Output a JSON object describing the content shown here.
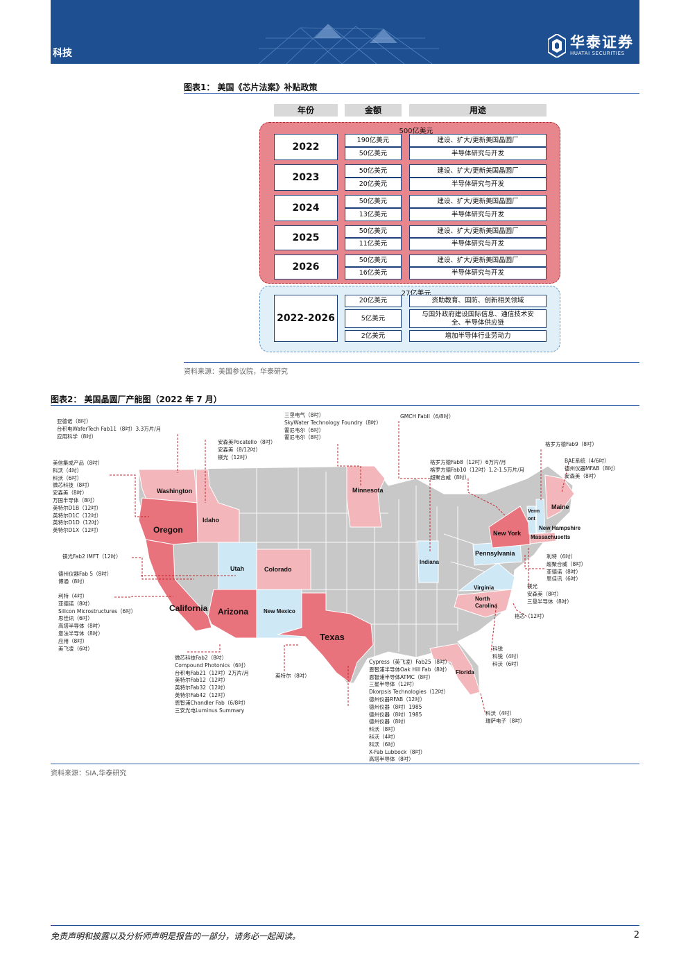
{
  "header": {
    "section": "科技",
    "logo_cn": "华泰证券",
    "logo_en": "HUATAI SECURITIES"
  },
  "figure1": {
    "title": "图表1：  美国《芯片法案》补贴政策",
    "columns": [
      "年份",
      "金额",
      "用途"
    ],
    "group_red_label": "500亿美元",
    "group_blue_label": "27亿美元",
    "rows": [
      {
        "year": "2022",
        "items": [
          {
            "amount": "190亿美元",
            "use": "建设、扩大/更新美国晶圆厂"
          },
          {
            "amount": "50亿美元",
            "use": "半导体研究与开发"
          }
        ]
      },
      {
        "year": "2023",
        "items": [
          {
            "amount": "50亿美元",
            "use": "建设、扩大/更新美国晶圆厂"
          },
          {
            "amount": "20亿美元",
            "use": "半导体研究与开发"
          }
        ]
      },
      {
        "year": "2024",
        "items": [
          {
            "amount": "50亿美元",
            "use": "建设、扩大/更新美国晶圆厂"
          },
          {
            "amount": "13亿美元",
            "use": "半导体研究与开发"
          }
        ]
      },
      {
        "year": "2025",
        "items": [
          {
            "amount": "50亿美元",
            "use": "建设、扩大/更新美国晶圆厂"
          },
          {
            "amount": "11亿美元",
            "use": "半导体研究与开发"
          }
        ]
      },
      {
        "year": "2026",
        "items": [
          {
            "amount": "50亿美元",
            "use": "建设、扩大/更新美国晶圆厂"
          },
          {
            "amount": "16亿美元",
            "use": "半导体研究与开发"
          }
        ]
      }
    ],
    "blue_row": {
      "year": "2022-2026",
      "items": [
        {
          "amount": "20亿美元",
          "use": "资助教育、国防、创新相关领域"
        },
        {
          "amount": "5亿美元",
          "use": "与国外政府建设国际信息、通信技术安全、半导体供应链"
        },
        {
          "amount": "2亿美元",
          "use": "增加半导体行业劳动力"
        }
      ]
    },
    "source": "资料来源：美国参议院，华泰研究"
  },
  "figure2": {
    "title": "图表2：  美国晶圆厂产能图（2022 年 7 月）",
    "source": "资料来源：SIA,华泰研究",
    "states": {
      "washington": "Washington",
      "oregon": "Oregon",
      "idaho": "Idaho",
      "california": "California",
      "utah": "Utah",
      "colorado": "Colorado",
      "arizona": "Arizona",
      "new_mexico": "New Mexico",
      "texas": "Texas",
      "minnesota": "Minnesota",
      "indiana": "Indiana",
      "pennsylvania": "Pennsylvania",
      "virginia": "Virginia",
      "north_carolina": "North\nCarolina",
      "florida": "Florida",
      "new_york": "New York",
      "vermont": "Verm\nont",
      "maine": "Maine",
      "new_hampshire": "New Hampshire",
      "massachusetts": "Massachusetts"
    },
    "callouts": {
      "wa": [
        "亚德诺（8吋）",
        "台积电WaferTech Fab11（8吋）3.3万片/月",
        "应用科学（8吋）"
      ],
      "id": [
        "安森美Pocatello（8吋）",
        "安森美（8/12吋）",
        "镁光（12吋）"
      ],
      "mn": [
        "三垦电气（8吋）",
        "SkyWater Technology Foundry（8吋）",
        "霍尼韦尔（6吋）",
        "霍尼韦尔（8吋）"
      ],
      "in": [
        "GMCH FabII（6/8吋）"
      ],
      "ny": [
        "格罗方德Fab8（12吋）6万片/月",
        "格罗方德Fab10（12吋）1.2-1.5万片/月",
        "超聚合威（8吋）"
      ],
      "vt": [
        "格罗方德Fab9（8吋）"
      ],
      "me": [
        "BAE系统（4/6吋）",
        "德州仪器MFAB（8吋）",
        "安森美（8吋）"
      ],
      "or": [
        "美信集成产品（8吋）",
        "科沃（4吋）",
        "科沃（6吋）",
        "微芯科技（8吋）",
        "安森美（8吋）",
        "万国半导体（8吋）",
        "英特尔D1B（12吋）",
        "英特尔D1C（12吋）",
        "英特尔D1D（12吋）",
        "英特尔D1X（12吋）"
      ],
      "ca_top": [
        "镁光Fab2 IMFT（12吋）"
      ],
      "ut": [
        "德州仪器Fab 5（8吋）",
        "博通（8吋）"
      ],
      "ca": [
        "利特（4吋）",
        "亚德诺（8吋）",
        "Silicon Microstructures（6吋）",
        "思佳讯（6吋）",
        "高塔半导体（8吋）",
        "意法半导体（8吋）",
        "应用（8吋）",
        "美飞凌（6吋）"
      ],
      "az": [
        "微芯科技Fab2（8吋）",
        "Compound Photonics（6吋）",
        "台积电Fab21（12吋）2万片/月",
        "英特尔Fab12（12吋）",
        "英特尔Fab32（12吋）",
        "英特尔Fab42（12吋）",
        "恩智浦Chandler Fab（6/8吋）",
        "三安光电Luminus Summary"
      ],
      "tx_nm": [
        "英特尔（8吋）"
      ],
      "tx": [
        "Cypress（英飞凌）Fab25（8吋）",
        "恩智浦半导体Oak Hill Fab（8吋）",
        "恩智浦半导体ATMC（8吋）",
        "三星半导体（12吋）",
        "Dkorpsis Technologies（12吋）",
        "德州仪器RFAB（12吋）",
        "德州仪器（8吋）1985",
        "德州仪器（8吋）1985",
        "德州仪器（8吋）",
        "科沃（8吋）",
        "科沃（4吋）",
        "科沃（6吋）",
        "X-Fab Lubbock（8吋）",
        "高塔半导体（8吋）"
      ],
      "fl": [
        "科沃（4吋）",
        "瑞萨电子（8吋）"
      ],
      "nc_a": [
        "科锐",
        "科锐（4吋）",
        "科沃（6吋）"
      ],
      "nc_b": [
        "格芯（12吋）"
      ],
      "ma": [
        "利特（6吋）",
        "超聚合威（8吋）",
        "亚德诺（8吋）",
        "思佳讯（6吋）"
      ],
      "va": [
        "镁光",
        "安森美（8吋）",
        "三垦半导体（8吋）"
      ]
    }
  },
  "footer": {
    "disclaimer": "免责声明和披露以及分析师声明是报告的一部分，请务必一起阅读。",
    "page": "2"
  }
}
